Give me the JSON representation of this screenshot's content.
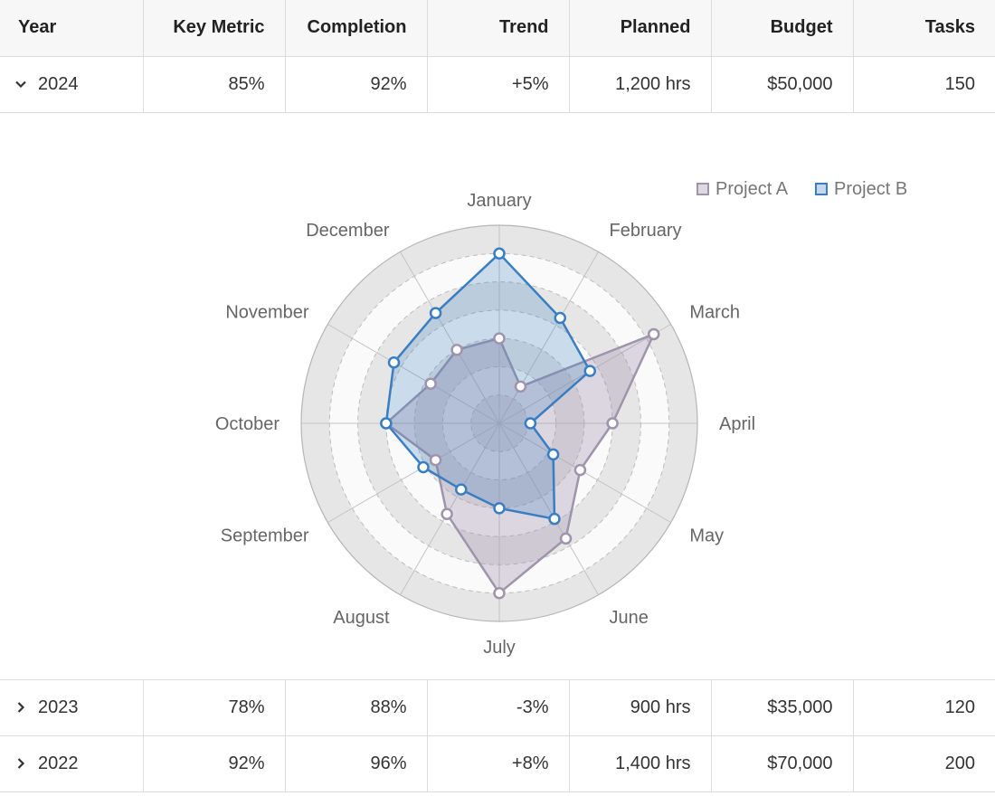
{
  "columns": [
    "Year",
    "Key Metric",
    "Completion",
    "Trend",
    "Planned",
    "Budget",
    "Tasks"
  ],
  "rows": [
    {
      "year": "2024",
      "key_metric": "85%",
      "completion": "92%",
      "trend": "+5%",
      "planned": "1,200 hrs",
      "budget": "$50,000",
      "tasks": "150",
      "expanded": true
    },
    {
      "year": "2023",
      "key_metric": "78%",
      "completion": "88%",
      "trend": "-3%",
      "planned": "900 hrs",
      "budget": "$35,000",
      "tasks": "120",
      "expanded": false
    },
    {
      "year": "2022",
      "key_metric": "92%",
      "completion": "96%",
      "trend": "+8%",
      "planned": "1,400 hrs",
      "budget": "$70,000",
      "tasks": "200",
      "expanded": false
    }
  ],
  "icons": {
    "expanded": "chevron-down-icon",
    "collapsed": "chevron-right-icon"
  },
  "chart_data": {
    "type": "radar",
    "categories": [
      "January",
      "February",
      "March",
      "April",
      "May",
      "June",
      "July",
      "August",
      "September",
      "October",
      "November",
      "December"
    ],
    "rlim": [
      0,
      7
    ],
    "grid": true,
    "legend_position": "top-right",
    "series": [
      {
        "name": "Project A",
        "color": "#a093ac",
        "values": [
          3,
          1.5,
          6.3,
          4,
          3.3,
          4.7,
          6,
          3.7,
          2.6,
          4,
          2.8,
          3
        ]
      },
      {
        "name": "Project B",
        "color": "#3a7ec2",
        "values": [
          6,
          4.3,
          3.7,
          1.1,
          2.2,
          3.9,
          3,
          2.7,
          3.1,
          4,
          4.3,
          4.5
        ]
      }
    ]
  }
}
